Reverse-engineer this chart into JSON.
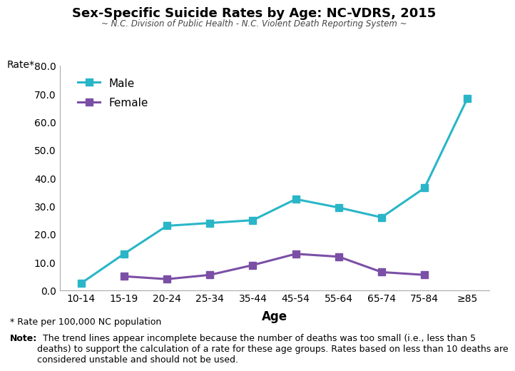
{
  "title": "Sex-Specific Suicide Rates by Age: NC-VDRS, 2015",
  "subtitle": "~ N.C. Division of Public Health - N.C. Violent Death Reporting System ~",
  "xlabel": "Age",
  "age_groups": [
    "10-14",
    "15-19",
    "20-24",
    "25-34",
    "35-44",
    "45-54",
    "55-64",
    "65-74",
    "75-84",
    "≥85"
  ],
  "male_values": [
    2.5,
    13.0,
    23.0,
    24.0,
    25.0,
    32.5,
    29.5,
    26.0,
    36.5,
    68.5
  ],
  "female_values": [
    null,
    5.0,
    4.0,
    5.5,
    9.0,
    13.0,
    12.0,
    6.5,
    5.5,
    null
  ],
  "male_color": "#29B6C8",
  "female_color": "#7B4FA6",
  "ylim": [
    0,
    80.0
  ],
  "yticks": [
    0.0,
    10.0,
    20.0,
    30.0,
    40.0,
    50.0,
    60.0,
    70.0,
    80.0
  ],
  "footnote1": "* Rate per 100,000 NC population",
  "footnote2_bold": "Note:",
  "footnote2_text": "  The trend lines appear incomplete because the number of deaths was too small (i.e., less than 5\ndeaths) to support the calculation of a rate for these age groups. Rates based on less than 10 deaths are\nconsidered unstable and should not be used.",
  "marker_style": "s",
  "linewidth": 2.2,
  "markersize": 7,
  "background_color": "#FFFFFF",
  "tick_fontsize": 10,
  "footnote_fontsize": 9
}
